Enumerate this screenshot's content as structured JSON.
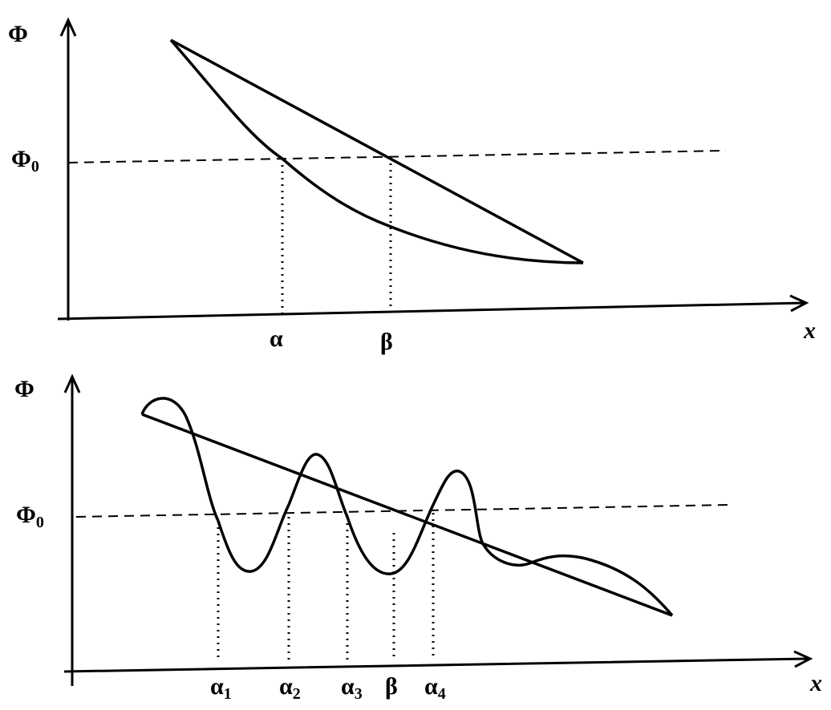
{
  "panels": [
    {
      "y_axis_label": "Φ",
      "level_label": {
        "text": "Φ",
        "subscript": "0"
      },
      "x_axis_label": "x",
      "markers": [
        {
          "text": "α"
        },
        {
          "text": "β"
        }
      ]
    },
    {
      "y_axis_label": "Φ",
      "level_label": {
        "text": "Φ",
        "subscript": "0"
      },
      "x_axis_label": "x",
      "markers": [
        {
          "text": "α",
          "subscript": "1"
        },
        {
          "text": "α",
          "subscript": "2"
        },
        {
          "text": "α",
          "subscript": "3"
        },
        {
          "text": "β"
        },
        {
          "text": "α",
          "subscript": "4"
        }
      ]
    }
  ]
}
